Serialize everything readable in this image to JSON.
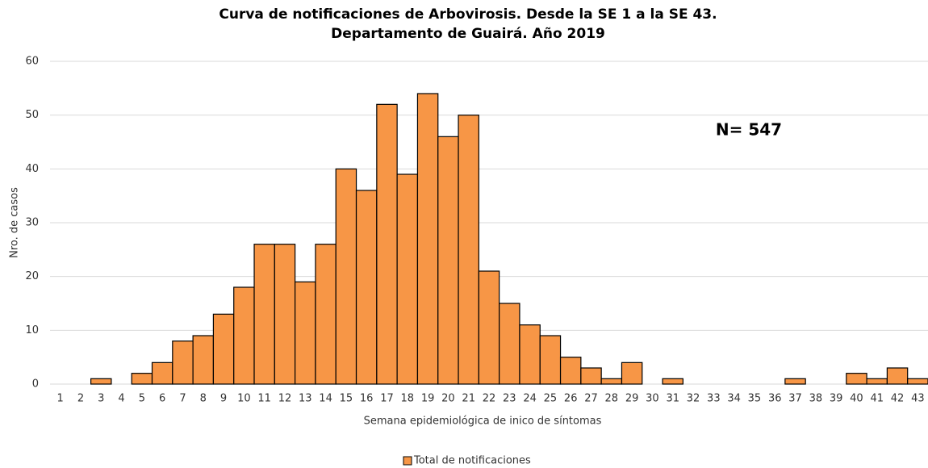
{
  "chart_data": {
    "type": "bar",
    "title": [
      "Curva de notificaciones de Arbovirosis. Desde la SE 1 a la SE 43.",
      "Departamento de Guairá. Año 2019"
    ],
    "annotation": "N= 547",
    "x_label": "Semana epidemiológica de inico de síntomas",
    "y_label": "Nro. de casos",
    "categories": [
      "1",
      "2",
      "3",
      "4",
      "5",
      "6",
      "7",
      "8",
      "9",
      "10",
      "11",
      "12",
      "13",
      "14",
      "15",
      "16",
      "17",
      "18",
      "19",
      "20",
      "21",
      "22",
      "23",
      "24",
      "25",
      "26",
      "27",
      "28",
      "29",
      "30",
      "31",
      "32",
      "33",
      "34",
      "35",
      "36",
      "37",
      "38",
      "39",
      "40",
      "41",
      "42",
      "43"
    ],
    "series": [
      {
        "name": "Total de notificaciones",
        "color": "#f79646",
        "values": [
          0,
          0,
          1,
          0,
          2,
          4,
          8,
          9,
          13,
          18,
          26,
          26,
          19,
          26,
          40,
          36,
          52,
          39,
          54,
          46,
          50,
          21,
          15,
          11,
          9,
          5,
          3,
          1,
          4,
          0,
          1,
          0,
          0,
          0,
          0,
          0,
          1,
          0,
          0,
          2,
          1,
          3,
          1
        ]
      }
    ],
    "ylim": [
      0,
      60
    ],
    "yticks": [
      0,
      10,
      20,
      30,
      40,
      50,
      60
    ],
    "grid": true,
    "legend": "bottom"
  }
}
